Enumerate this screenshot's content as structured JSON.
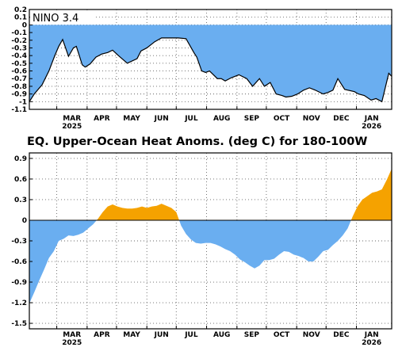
{
  "colors": {
    "nino_fill": "#6aaef0",
    "heat_negative": "#6aaef0",
    "heat_positive": "#f5a200",
    "line": "#000000",
    "grid": "#666666",
    "background": "#ffffff"
  },
  "month_labels": [
    "MAR",
    "APR",
    "MAY",
    "JUN",
    "JUL",
    "AUG",
    "SEP",
    "OCT",
    "NOV",
    "DEC",
    "JAN"
  ],
  "year_labels": [
    {
      "month": "MAR",
      "year": "2025"
    },
    {
      "month": "JAN",
      "year": "2026"
    }
  ],
  "chart_data": [
    {
      "type": "area",
      "panel_label": "NINO 3.4",
      "title": "",
      "xlabel": "",
      "ylabel": "",
      "ylim": [
        -1.1,
        0.2
      ],
      "y_tick_labels": [
        "0.2",
        "0.1",
        "0",
        "-0.1",
        "-0.2",
        "-0.3",
        "-0.4",
        "-0.5",
        "-0.6",
        "-0.7",
        "-0.8",
        "-0.9",
        "-1",
        "-1.1"
      ],
      "y_tick_values": [
        0.2,
        0.1,
        0,
        -0.1,
        -0.2,
        -0.3,
        -0.4,
        -0.5,
        -0.6,
        -0.7,
        -0.8,
        -0.9,
        -1.0,
        -1.1
      ],
      "grid": true,
      "x_unit": "day of season (0 = Feb 1, 2025; day 31 ~ Mar 1)",
      "x": [
        0,
        5,
        13,
        20,
        26,
        30,
        34,
        40,
        45,
        48,
        54,
        57,
        62,
        68,
        74,
        80,
        85,
        91,
        100,
        110,
        114,
        120,
        128,
        135,
        143,
        152,
        160,
        168,
        171,
        176,
        180,
        184,
        192,
        196,
        200,
        206,
        214,
        222,
        228,
        235,
        240,
        246,
        252,
        258,
        262,
        268,
        274,
        280,
        286,
        292,
        300,
        305,
        310,
        315,
        322,
        332,
        336,
        342,
        349,
        354,
        360,
        367,
        370
      ],
      "values": [
        -1.0,
        -0.9,
        -0.78,
        -0.6,
        -0.4,
        -0.28,
        -0.19,
        -0.41,
        -0.3,
        -0.28,
        -0.52,
        -0.55,
        -0.51,
        -0.42,
        -0.38,
        -0.36,
        -0.33,
        -0.4,
        -0.5,
        -0.44,
        -0.34,
        -0.3,
        -0.22,
        -0.17,
        -0.17,
        -0.17,
        -0.18,
        -0.36,
        -0.42,
        -0.6,
        -0.62,
        -0.6,
        -0.7,
        -0.7,
        -0.73,
        -0.69,
        -0.65,
        -0.7,
        -0.8,
        -0.7,
        -0.8,
        -0.75,
        -0.9,
        -0.92,
        -0.94,
        -0.93,
        -0.9,
        -0.85,
        -0.82,
        -0.85,
        -0.9,
        -0.88,
        -0.85,
        -0.7,
        -0.84,
        -0.87,
        -0.9,
        -0.92,
        -0.98,
        -0.96,
        -1.0,
        -0.63,
        -0.67
      ],
      "fill_color": "#6aaef0"
    },
    {
      "type": "area",
      "title": "EQ. Upper-Ocean Heat Anoms. (deg C) for 180-100W",
      "xlabel": "",
      "ylabel": "",
      "ylim": [
        -1.58,
        0.98
      ],
      "y_tick_labels": [
        "0.9",
        "0.6",
        "0.3",
        "0",
        "-0.3",
        "-0.6",
        "-0.9",
        "-1.2",
        "-1.5"
      ],
      "y_tick_values": [
        0.9,
        0.6,
        0.3,
        0,
        -0.3,
        -0.6,
        -0.9,
        -1.2,
        -1.5
      ],
      "grid": true,
      "x_unit": "day of season (0 = Feb 1, 2025; day 31 ~ Mar 1)",
      "x": [
        0,
        5,
        10,
        15,
        20,
        25,
        30,
        35,
        40,
        45,
        50,
        55,
        60,
        65,
        70,
        75,
        80,
        85,
        90,
        95,
        100,
        105,
        110,
        115,
        120,
        125,
        130,
        135,
        140,
        145,
        150,
        155,
        160,
        165,
        170,
        175,
        180,
        185,
        190,
        195,
        200,
        205,
        210,
        215,
        220,
        225,
        230,
        235,
        240,
        245,
        250,
        255,
        260,
        265,
        270,
        275,
        280,
        285,
        290,
        295,
        300,
        305,
        310,
        315,
        320,
        325,
        330,
        335,
        340,
        345,
        350,
        355,
        360,
        365,
        370
      ],
      "values": [
        -1.21,
        -1.05,
        -0.88,
        -0.72,
        -0.55,
        -0.45,
        -0.3,
        -0.27,
        -0.22,
        -0.23,
        -0.21,
        -0.18,
        -0.12,
        -0.06,
        0.02,
        0.12,
        0.2,
        0.23,
        0.2,
        0.18,
        0.17,
        0.17,
        0.18,
        0.2,
        0.18,
        0.2,
        0.21,
        0.24,
        0.21,
        0.18,
        0.12,
        -0.08,
        -0.2,
        -0.28,
        -0.33,
        -0.34,
        -0.33,
        -0.33,
        -0.35,
        -0.38,
        -0.42,
        -0.45,
        -0.5,
        -0.57,
        -0.61,
        -0.66,
        -0.7,
        -0.66,
        -0.58,
        -0.58,
        -0.56,
        -0.5,
        -0.45,
        -0.46,
        -0.5,
        -0.52,
        -0.55,
        -0.6,
        -0.6,
        -0.53,
        -0.45,
        -0.43,
        -0.36,
        -0.3,
        -0.22,
        -0.12,
        0.05,
        0.2,
        0.3,
        0.35,
        0.4,
        0.42,
        0.45,
        0.59,
        0.75
      ],
      "positive_color": "#f5a200",
      "negative_color": "#6aaef0"
    }
  ]
}
